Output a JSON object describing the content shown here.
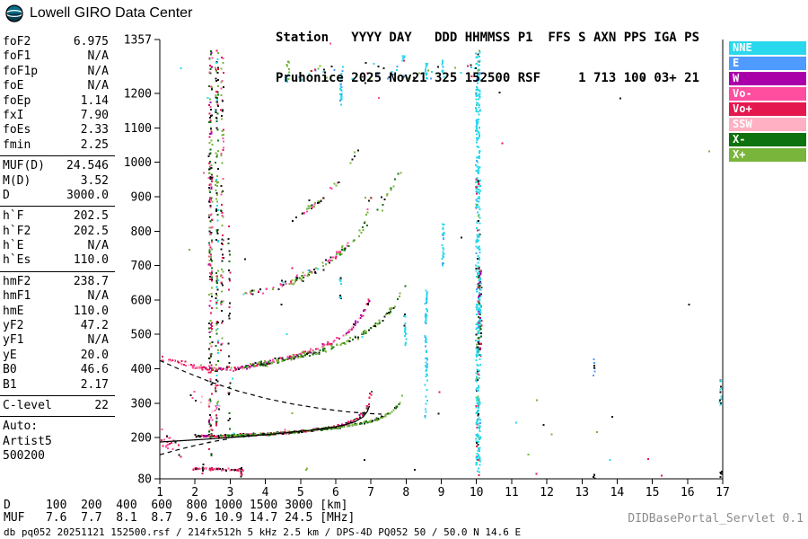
{
  "header": {
    "brand": "Lowell GIRO Data Center",
    "station_header_line": "Station   YYYY DAY   DDD HHMMSS P1  FFS S AXN PPS IGA PS",
    "station_values_line": "Pruhonice 2025 Nov21 325 152500 RSF     1 713 100 03+ 21"
  },
  "params": {
    "groups": [
      {
        "rows": [
          {
            "label": "foF2",
            "value": "6.975"
          },
          {
            "label": "foF1",
            "value": "N/A"
          },
          {
            "label": "foF1p",
            "value": "N/A"
          },
          {
            "label": "foE",
            "value": "N/A"
          },
          {
            "label": "foEp",
            "value": "1.14"
          },
          {
            "label": "fxI",
            "value": "7.90"
          },
          {
            "label": "foEs",
            "value": "2.33"
          },
          {
            "label": "fmin",
            "value": "2.25"
          }
        ]
      },
      {
        "rows": [
          {
            "label": "MUF(D)",
            "value": "24.546"
          },
          {
            "label": "M(D)",
            "value": "3.52"
          },
          {
            "label": "D",
            "value": "3000.0"
          }
        ]
      },
      {
        "rows": [
          {
            "label": "h`F",
            "value": "202.5"
          },
          {
            "label": "h`F2",
            "value": "202.5"
          },
          {
            "label": "h`E",
            "value": "N/A"
          },
          {
            "label": "h`Es",
            "value": "110.0"
          }
        ]
      },
      {
        "rows": [
          {
            "label": "hmF2",
            "value": "238.7"
          },
          {
            "label": "hmF1",
            "value": "N/A"
          },
          {
            "label": "hmE",
            "value": "110.0"
          },
          {
            "label": "yF2",
            "value": "47.2"
          },
          {
            "label": "yF1",
            "value": "N/A"
          },
          {
            "label": "yE",
            "value": "20.0"
          },
          {
            "label": "B0",
            "value": "46.6"
          },
          {
            "label": "B1",
            "value": "2.17"
          }
        ]
      },
      {
        "rows": [
          {
            "label": "C-level",
            "value": "22"
          }
        ]
      },
      {
        "lines": [
          "Auto:",
          "Artist5",
          "500200"
        ]
      }
    ]
  },
  "legend": {
    "items": [
      "NNE",
      "E",
      "W",
      "Vo-",
      "Vo+",
      "SSW",
      "X-",
      "X+"
    ]
  },
  "muf_table": {
    "d_label": "D",
    "muf_label": "MUF",
    "distances": [
      "100",
      "200",
      "400",
      "600",
      "800",
      "1000",
      "1500",
      "3000"
    ],
    "km_unit": "[km]",
    "muf_values": [
      "7.6",
      "7.7",
      "8.1",
      "8.7",
      "9.6",
      "10.9",
      "14.7",
      "24.5"
    ],
    "mhz_unit": "[MHz]"
  },
  "footer": {
    "status_line": "db pq052 20251121 152500.rsf / 214fx512h 5 kHz 2.5 km / DPS-4D PQ052 50 / 50.0 N 14.6 E",
    "servlet_label": "DIDBasePortal_Servlet 0.1"
  },
  "chart_data": {
    "type": "scatter",
    "xlabel": "[MHz]",
    "ylabel": "[km]",
    "xlim": [
      1,
      17
    ],
    "ylim": [
      80,
      1357
    ],
    "x_ticks": [
      1,
      2,
      3,
      4,
      5,
      6,
      7,
      8,
      9,
      10,
      11,
      12,
      13,
      14,
      15,
      16,
      17
    ],
    "y_ticks": [
      80,
      200,
      300,
      400,
      500,
      600,
      700,
      800,
      900,
      1000,
      1100,
      1200,
      1357
    ],
    "colors": {
      "NNE": "#29D8EC",
      "E": "#4F9BFF",
      "W": "#AA00AA",
      "Vo-": "#FF4DA0",
      "Vo+": "#E5174F",
      "SSW": "#FFB0C2",
      "X-": "#0E720E",
      "X+": "#79B53A",
      "black": "#161616"
    },
    "traces": [
      {
        "name": "F1-O",
        "n": 300,
        "jitter": 4,
        "colors": {
          "Vo+": 0.38,
          "black": 0.22,
          "W": 0.12,
          "Vo-": 0.14,
          "X-": 0.14
        },
        "points": [
          [
            2.0,
            206
          ],
          [
            2.6,
            207
          ],
          [
            3.4,
            210
          ],
          [
            4.2,
            214
          ],
          [
            5.0,
            220
          ],
          [
            5.7,
            229
          ],
          [
            6.2,
            240
          ],
          [
            6.55,
            254
          ],
          [
            6.78,
            275
          ],
          [
            6.9,
            300
          ],
          [
            6.96,
            328
          ],
          [
            6.975,
            350
          ]
        ]
      },
      {
        "name": "F1-X",
        "n": 240,
        "jitter": 4,
        "colors": {
          "X+": 0.5,
          "X-": 0.32,
          "black": 0.18
        },
        "points": [
          [
            2.7,
            206
          ],
          [
            3.6,
            210
          ],
          [
            4.4,
            215
          ],
          [
            5.2,
            222
          ],
          [
            6.0,
            231
          ],
          [
            6.7,
            243
          ],
          [
            7.2,
            257
          ],
          [
            7.6,
            278
          ],
          [
            7.82,
            305
          ],
          [
            7.9,
            340
          ]
        ]
      },
      {
        "name": "F2-O",
        "n": 190,
        "jitter": 8,
        "colors": {
          "Vo-": 0.3,
          "Vo+": 0.18,
          "W": 0.14,
          "SSW": 0.1,
          "black": 0.14,
          "X+": 0.14
        },
        "points": [
          [
            2.1,
            408
          ],
          [
            2.6,
            402
          ],
          [
            3.2,
            404
          ],
          [
            3.9,
            416
          ],
          [
            4.6,
            434
          ],
          [
            5.3,
            456
          ],
          [
            5.9,
            482
          ],
          [
            6.4,
            515
          ],
          [
            6.75,
            558
          ],
          [
            6.93,
            605
          ]
        ]
      },
      {
        "name": "F2-X",
        "n": 150,
        "jitter": 8,
        "colors": {
          "X+": 0.52,
          "X-": 0.28,
          "black": 0.2
        },
        "points": [
          [
            3.4,
            410
          ],
          [
            4.2,
            420
          ],
          [
            5.0,
            438
          ],
          [
            5.8,
            462
          ],
          [
            6.6,
            495
          ],
          [
            7.2,
            535
          ],
          [
            7.7,
            590
          ],
          [
            7.93,
            650
          ]
        ]
      },
      {
        "name": "F3-O",
        "n": 80,
        "jitter": 11,
        "colors": {
          "Vo-": 0.3,
          "X+": 0.26,
          "Vo+": 0.16,
          "NNE": 0.08,
          "black": 0.2
        },
        "points": [
          [
            3.3,
            615
          ],
          [
            4.1,
            635
          ],
          [
            4.9,
            665
          ],
          [
            5.7,
            710
          ],
          [
            6.3,
            765
          ],
          [
            6.8,
            835
          ],
          [
            6.97,
            900
          ]
        ]
      },
      {
        "name": "F3-X",
        "n": 55,
        "jitter": 11,
        "colors": {
          "X+": 0.55,
          "X-": 0.25,
          "black": 0.2
        },
        "points": [
          [
            4.6,
            645
          ],
          [
            5.6,
            695
          ],
          [
            6.5,
            775
          ],
          [
            7.3,
            875
          ],
          [
            7.85,
            985
          ]
        ]
      },
      {
        "name": "F4",
        "n": 35,
        "jitter": 13,
        "colors": {
          "Vo-": 0.35,
          "X+": 0.3,
          "black": 0.35
        },
        "points": [
          [
            4.7,
            835
          ],
          [
            5.5,
            890
          ],
          [
            6.2,
            965
          ],
          [
            6.7,
            1055
          ]
        ]
      },
      {
        "name": "Es",
        "n": 55,
        "jitter": 4,
        "colors": {
          "Vo+": 0.45,
          "black": 0.3,
          "Vo-": 0.25
        },
        "points": [
          [
            1.9,
            112
          ],
          [
            2.6,
            110
          ],
          [
            3.35,
            108
          ]
        ]
      },
      {
        "name": "noise-left-mid",
        "n": 40,
        "jitter": 9,
        "colors": {
          "Vo+": 0.45,
          "Vo-": 0.35,
          "SSW": 0.2
        },
        "points": [
          [
            1.02,
            432
          ],
          [
            1.7,
            415
          ],
          [
            2.4,
            396
          ]
        ]
      },
      {
        "name": "noise-left-low",
        "n": 22,
        "jitter": 28,
        "colors": {
          "Vo+": 0.4,
          "Vo-": 0.35,
          "black": 0.25
        },
        "points": [
          [
            1.0,
            205
          ],
          [
            1.6,
            160
          ]
        ]
      },
      {
        "name": "top-scatter",
        "n": 55,
        "jitter": 34,
        "colors": {
          "NNE": 0.3,
          "X+": 0.2,
          "Vo+": 0.14,
          "E": 0.1,
          "black": 0.26
        },
        "points": [
          [
            4.4,
            1268
          ],
          [
            10.3,
            1268
          ]
        ]
      },
      {
        "name": "mid-left-sparse",
        "n": 14,
        "jitter": 26,
        "colors": {
          "Vo-": 0.5,
          "SSW": 0.3,
          "black": 0.2
        },
        "points": [
          [
            1.8,
            330
          ],
          [
            2.7,
            285
          ]
        ]
      }
    ],
    "bands": [
      {
        "name": "interference-2.4",
        "f": 2.42,
        "fw": 0.1,
        "h0": 150,
        "h1": 1330,
        "n": 200,
        "colors": {
          "X-": 0.18,
          "X+": 0.16,
          "Vo+": 0.18,
          "black": 0.2,
          "W": 0.12,
          "Vo-": 0.16
        }
      },
      {
        "name": "interference-2.6",
        "f": 2.6,
        "fw": 0.08,
        "h0": 200,
        "h1": 1330,
        "n": 130,
        "colors": {
          "X-": 0.25,
          "black": 0.25,
          "X+": 0.2,
          "Vo+": 0.15,
          "NNE": 0.15
        }
      },
      {
        "name": "interference-2.75",
        "f": 2.75,
        "fw": 0.08,
        "h0": 420,
        "h1": 1310,
        "n": 70,
        "colors": {
          "X+": 0.3,
          "black": 0.3,
          "Vo+": 0.2,
          "Vo-": 0.2
        }
      },
      {
        "name": "interference-2.95",
        "f": 2.95,
        "fw": 0.06,
        "h0": 220,
        "h1": 820,
        "n": 28,
        "colors": {
          "black": 0.5,
          "X-": 0.3,
          "Vo+": 0.2
        }
      },
      {
        "name": "interference-10",
        "f": 10.02,
        "fw": 0.12,
        "h0": 85,
        "h1": 1330,
        "n": 420,
        "colors": {
          "NNE": 0.82,
          "E": 0.04,
          "X+": 0.04,
          "Vo+": 0.05,
          "black": 0.05
        }
      },
      {
        "name": "interference-10-mid",
        "f": 10.07,
        "fw": 0.1,
        "h0": 440,
        "h1": 700,
        "n": 90,
        "colors": {
          "Vo+": 0.22,
          "X-": 0.22,
          "W": 0.18,
          "NNE": 0.28,
          "black": 0.1
        }
      },
      {
        "name": "interference-8.55",
        "f": 8.55,
        "fw": 0.07,
        "h0": 245,
        "h1": 630,
        "n": 60,
        "colors": {
          "NNE": 0.85,
          "E": 0.15
        }
      },
      {
        "name": "interference-8.55-top",
        "f": 8.55,
        "fw": 0.07,
        "h0": 1230,
        "h1": 1300,
        "n": 12,
        "colors": {
          "NNE": 0.8,
          "X+": 0.2
        }
      },
      {
        "name": "interference-9",
        "f": 9.02,
        "fw": 0.06,
        "h0": 700,
        "h1": 830,
        "n": 26,
        "colors": {
          "NNE": 0.85,
          "E": 0.15
        }
      },
      {
        "name": "interference-9-top",
        "f": 9.02,
        "fw": 0.06,
        "h0": 1240,
        "h1": 1300,
        "n": 10,
        "colors": {
          "NNE": 0.8,
          "E": 0.2
        }
      },
      {
        "name": "interference-7.95",
        "f": 7.95,
        "fw": 0.06,
        "h0": 470,
        "h1": 565,
        "n": 16,
        "colors": {
          "NNE": 0.7,
          "black": 0.3
        }
      },
      {
        "name": "interference-7.9-top",
        "f": 7.9,
        "fw": 0.06,
        "h0": 1250,
        "h1": 1315,
        "n": 9,
        "colors": {
          "NNE": 0.7,
          "Vo+": 0.3
        }
      },
      {
        "name": "interference-6.1-top",
        "f": 6.12,
        "fw": 0.06,
        "h0": 1160,
        "h1": 1265,
        "n": 22,
        "colors": {
          "NNE": 0.9,
          "E": 0.1
        }
      },
      {
        "name": "interference-6.1",
        "f": 6.12,
        "fw": 0.06,
        "h0": 600,
        "h1": 672,
        "n": 11,
        "colors": {
          "NNE": 0.8,
          "black": 0.2
        }
      },
      {
        "name": "interference-4.6-top",
        "f": 4.62,
        "fw": 0.06,
        "h0": 1230,
        "h1": 1300,
        "n": 12,
        "colors": {
          "NNE": 0.6,
          "X+": 0.4
        }
      },
      {
        "name": "dots-13.3",
        "f": 13.32,
        "fw": 0.05,
        "h0": 380,
        "h1": 432,
        "n": 7,
        "colors": {
          "black": 0.6,
          "E": 0.4
        }
      },
      {
        "name": "dots-13.3-low",
        "f": 13.32,
        "fw": 0.05,
        "h0": 84,
        "h1": 100,
        "n": 4,
        "colors": {
          "black": 1.0
        }
      },
      {
        "name": "dots-16.9",
        "f": 16.92,
        "fw": 0.07,
        "h0": 290,
        "h1": 372,
        "n": 13,
        "colors": {
          "NNE": 0.5,
          "black": 0.5
        }
      },
      {
        "name": "dots-16.9-low",
        "f": 16.92,
        "fw": 0.07,
        "h0": 84,
        "h1": 104,
        "n": 5,
        "colors": {
          "black": 0.6,
          "NNE": 0.4
        }
      },
      {
        "name": "dots-3.3-low",
        "f": 3.3,
        "fw": 0.05,
        "h0": 88,
        "h1": 122,
        "n": 8,
        "colors": {
          "black": 0.5,
          "Vo+": 0.5
        }
      },
      {
        "name": "dots-5.15-low",
        "f": 5.15,
        "fw": 0.04,
        "h0": 106,
        "h1": 114,
        "n": 3,
        "colors": {
          "X+": 1.0
        }
      },
      {
        "name": "dots-2.2-low",
        "f": 2.2,
        "fw": 0.04,
        "h0": 95,
        "h1": 125,
        "n": 6,
        "colors": {
          "black": 0.6,
          "Vo+": 0.4
        }
      }
    ],
    "noise": {
      "n": 45,
      "colors": {
        "black": 0.5,
        "Vo+": 0.15,
        "NNE": 0.1,
        "Vo-": 0.1,
        "X+": 0.15
      }
    },
    "lines": [
      {
        "name": "profile-line-solid",
        "style": "solid",
        "points": [
          [
            1.0,
            187
          ],
          [
            1.8,
            192
          ],
          [
            2.6,
            197
          ],
          [
            3.4,
            203
          ],
          [
            4.2,
            210
          ],
          [
            5.0,
            218
          ],
          [
            5.7,
            226
          ],
          [
            6.2,
            235
          ],
          [
            6.55,
            246
          ],
          [
            6.78,
            260
          ],
          [
            6.9,
            276
          ],
          [
            6.96,
            292
          ]
        ]
      },
      {
        "name": "muf-curve-dashed",
        "style": "dashed",
        "points": [
          [
            1.0,
            424
          ],
          [
            1.7,
            392
          ],
          [
            2.4,
            363
          ],
          [
            3.2,
            336
          ],
          [
            4.0,
            314
          ],
          [
            4.8,
            297
          ],
          [
            5.6,
            284
          ],
          [
            6.3,
            275
          ],
          [
            6.9,
            270
          ],
          [
            7.3,
            268
          ]
        ]
      },
      {
        "name": "profile-extrapolated-dashed",
        "style": "dashed",
        "points": [
          [
            1.0,
            150
          ],
          [
            1.5,
            164
          ],
          [
            2.0,
            177
          ],
          [
            2.5,
            188
          ],
          [
            2.95,
            196
          ]
        ]
      }
    ]
  }
}
